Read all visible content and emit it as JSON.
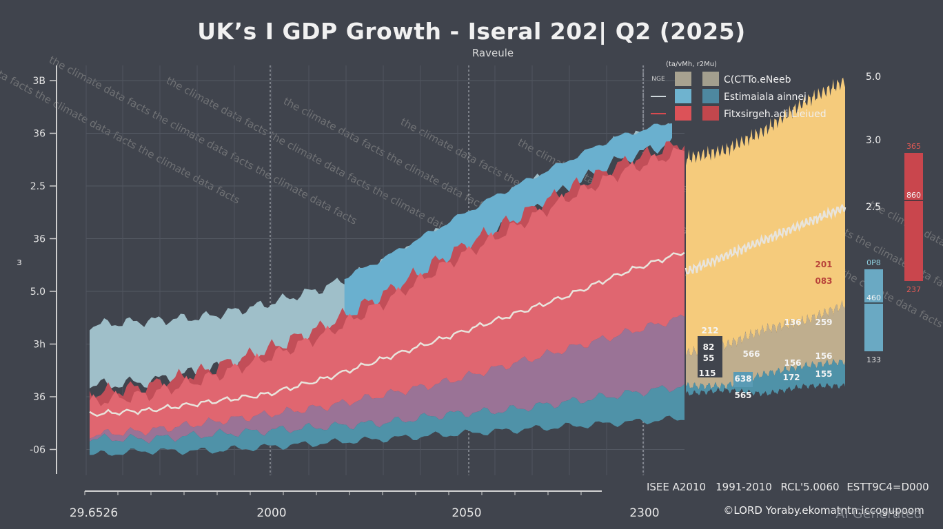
{
  "header": {
    "title": "UK’s I GDP Growth - Iseral 202| Q2 (2025)",
    "subtitle": "Raveule"
  },
  "legend": {
    "header": "(ta/vMh, r2Mu)",
    "row_label_first": "NGE",
    "items": [
      {
        "label": "C(CTTo.eNeeb",
        "line_color": "",
        "swatch1": "#a8a290",
        "swatch2": "#a39f8e"
      },
      {
        "label": "Estimaiala ainnej",
        "line_color": "#cfd8dc",
        "swatch1": "#6fb3cf",
        "swatch2": "#4e88a0"
      },
      {
        "label": "Fitxsirgeh.adi Lieiued",
        "line_color": "#d84a4f",
        "swatch1": "#dc5258",
        "swatch2": "#c2474d"
      }
    ]
  },
  "colors": {
    "background": "#40444d",
    "light_blue_band": "#9fbfc9",
    "blue_band": "#6ab0cf",
    "red_band": "#e06670",
    "dark_red_band": "#c24e58",
    "purple_band": "#9a7396",
    "teal_band": "#4f92a8",
    "yellow_band": "#f5cb7c",
    "tan_band": "#bfae8e",
    "median_line": "#e8e4dc"
  },
  "period_labels": [
    "ISEE A2010",
    "1991-2010",
    "RCL'5.0060",
    "ESTT9C4=D000"
  ],
  "footer": {
    "copyright": "©LORD Yoraby.ekomatntn.iccogupoom",
    "ai_mark": "AI Generated"
  },
  "watermark_text": "the climate data facts",
  "chart_data": {
    "type": "area",
    "title": "UK’s I GDP Growth - Iseral 202| Q2 (2025)",
    "subtitle": "Raveule",
    "ylabel": "з",
    "y_tick_labels": [
      "3B",
      "36",
      "2.5",
      "36",
      "5.0",
      "3h",
      "36",
      "-06"
    ],
    "x_tick_labels": [
      "29.6526",
      "2000",
      "2050",
      "2300"
    ],
    "right_axis_labels": [
      "5.0",
      "3.0",
      "2.5"
    ],
    "grid": true,
    "legend_position": "top-right",
    "x": [
      0,
      0.1,
      0.2,
      0.3,
      0.4,
      0.5,
      0.6,
      0.7,
      0.8,
      0.9,
      1.0
    ],
    "series": [
      {
        "name": "Light blue band (upper)",
        "values": [
          0.37,
          0.38,
          0.39,
          0.42,
          0.46,
          0.52,
          0.6,
          0.68,
          0.75,
          0.82,
          0.86
        ]
      },
      {
        "name": "Light blue band (lower)",
        "values": [
          0.22,
          0.23,
          0.26,
          0.28,
          0.34,
          0.42,
          0.5,
          0.6,
          0.69,
          0.77,
          0.82
        ]
      },
      {
        "name": "Red band (upper)",
        "values": [
          0.18,
          0.2,
          0.24,
          0.29,
          0.35,
          0.43,
          0.52,
          0.6,
          0.68,
          0.75,
          0.8
        ]
      },
      {
        "name": "Median line",
        "values": [
          0.15,
          0.16,
          0.18,
          0.2,
          0.24,
          0.29,
          0.34,
          0.39,
          0.44,
          0.5,
          0.55
        ]
      },
      {
        "name": "Purple band (upper)",
        "values": [
          0.1,
          0.11,
          0.13,
          0.15,
          0.17,
          0.2,
          0.23,
          0.27,
          0.31,
          0.35,
          0.39
        ]
      },
      {
        "name": "Teal band (upper)",
        "values": [
          0.09,
          0.09,
          0.1,
          0.11,
          0.12,
          0.13,
          0.15,
          0.16,
          0.18,
          0.2,
          0.22
        ]
      },
      {
        "name": "Lower bound",
        "values": [
          0.05,
          0.06,
          0.06,
          0.07,
          0.08,
          0.09,
          0.1,
          0.11,
          0.12,
          0.13,
          0.14
        ]
      }
    ],
    "projection_panel": {
      "yellow_upper": [
        0.78,
        0.8,
        0.85,
        0.92,
        0.97
      ],
      "median": [
        0.5,
        0.54,
        0.58,
        0.62,
        0.66
      ],
      "tan_upper": [
        0.3,
        0.32,
        0.36,
        0.38,
        0.42
      ],
      "teal_upper": [
        0.22,
        0.22,
        0.25,
        0.27,
        0.28
      ],
      "labels": [
        {
          "text": "212",
          "dark": true
        },
        {
          "text": "82",
          "dark": true
        },
        {
          "text": "55",
          "dark": true
        },
        {
          "text": "115",
          "dark": true
        },
        {
          "text": "566"
        },
        {
          "text": "638"
        },
        {
          "text": "565"
        },
        {
          "text": "136"
        },
        {
          "text": "156"
        },
        {
          "text": "172"
        },
        {
          "text": "259"
        },
        {
          "text": "156"
        },
        {
          "text": "155"
        },
        {
          "text": "201",
          "red": true
        },
        {
          "text": "083",
          "red": true
        }
      ]
    },
    "range_bars": [
      {
        "name": "blue range",
        "color": "#6aa9c3",
        "top_label": "0P8",
        "mid_label": "460",
        "bottom_label": "133",
        "top": 0.46,
        "mid": 0.39,
        "bottom": 0.2
      },
      {
        "name": "red range",
        "color": "#c9464d",
        "top_label": "365",
        "mid_label": "860",
        "bottom_label": "237",
        "top": 0.78,
        "mid": 0.63,
        "bottom": 0.42
      }
    ]
  }
}
